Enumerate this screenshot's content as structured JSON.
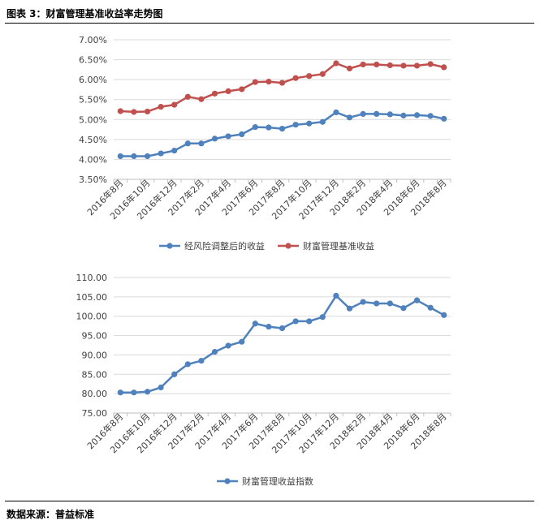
{
  "figure": {
    "title": "图表 3：财富管理基准收益率走势图",
    "source": "数据来源：普益标准"
  },
  "colors": {
    "blue": "#4F81BD",
    "red": "#C0504D",
    "grid": "#D9D9D9",
    "axis": "#BFBFBF"
  },
  "chart_data": [
    {
      "type": "line",
      "title": "",
      "categories": [
        "2016年8月",
        "2016年9月",
        "2016年10月",
        "2016年11月",
        "2016年12月",
        "2017年1月",
        "2017年2月",
        "2017年3月",
        "2017年4月",
        "2017年5月",
        "2017年6月",
        "2017年7月",
        "2017年8月",
        "2017年9月",
        "2017年10月",
        "2017年11月",
        "2017年12月",
        "2018年1月",
        "2018年2月",
        "2018年3月",
        "2018年4月",
        "2018年5月",
        "2018年6月",
        "2018年7月",
        "2018年8月"
      ],
      "tick_labels": [
        "2016年8月",
        "2016年10月",
        "2016年12月",
        "2017年2月",
        "2017年4月",
        "2017年6月",
        "2017年8月",
        "2017年10月",
        "2017年12月",
        "2018年2月",
        "2018年4月",
        "2018年6月",
        "2018年8月"
      ],
      "y_tick_labels": [
        "3.50%",
        "4.00%",
        "4.50%",
        "5.00%",
        "5.50%",
        "6.00%",
        "6.50%",
        "7.00%"
      ],
      "ylim": [
        3.5,
        7.0
      ],
      "series": [
        {
          "name": "经风险调整后的收益",
          "color": "#4F81BD",
          "values": [
            4.08,
            4.08,
            4.08,
            4.15,
            4.22,
            4.4,
            4.4,
            4.52,
            4.58,
            4.63,
            4.81,
            4.8,
            4.77,
            4.87,
            4.9,
            4.94,
            5.18,
            5.05,
            5.14,
            5.14,
            5.13,
            5.1,
            5.11,
            5.09,
            5.02
          ]
        },
        {
          "name": "财富管理基准收益",
          "color": "#C0504D",
          "values": [
            5.21,
            5.19,
            5.2,
            5.32,
            5.37,
            5.57,
            5.51,
            5.65,
            5.71,
            5.76,
            5.94,
            5.95,
            5.92,
            6.04,
            6.09,
            6.14,
            6.41,
            6.28,
            6.38,
            6.38,
            6.36,
            6.35,
            6.35,
            6.39,
            6.31
          ]
        }
      ]
    },
    {
      "type": "line",
      "title": "",
      "categories": [
        "2016年8月",
        "2016年9月",
        "2016年10月",
        "2016年11月",
        "2016年12月",
        "2017年1月",
        "2017年2月",
        "2017年3月",
        "2017年4月",
        "2017年5月",
        "2017年6月",
        "2017年7月",
        "2017年8月",
        "2017年9月",
        "2017年10月",
        "2017年11月",
        "2017年12月",
        "2018年1月",
        "2018年2月",
        "2018年3月",
        "2018年4月",
        "2018年5月",
        "2018年6月",
        "2018年7月",
        "2018年8月"
      ],
      "tick_labels": [
        "2016年8月",
        "2016年10月",
        "2016年12月",
        "2017年2月",
        "2017年4月",
        "2017年6月",
        "2017年8月",
        "2017年10月",
        "2017年12月",
        "2018年2月",
        "2018年4月",
        "2018年6月",
        "2018年8月"
      ],
      "y_tick_labels": [
        "75.00",
        "80.00",
        "85.00",
        "90.00",
        "95.00",
        "100.00",
        "105.00",
        "110.00"
      ],
      "ylim": [
        75,
        110
      ],
      "series": [
        {
          "name": "财富管理收益指数",
          "color": "#4F81BD",
          "values": [
            80.3,
            80.3,
            80.5,
            81.6,
            85.0,
            87.6,
            88.5,
            90.8,
            92.4,
            93.4,
            98.1,
            97.3,
            96.9,
            98.7,
            98.7,
            99.8,
            105.3,
            102.0,
            103.7,
            103.3,
            103.3,
            102.1,
            104.1,
            102.2,
            100.3
          ]
        }
      ]
    }
  ]
}
